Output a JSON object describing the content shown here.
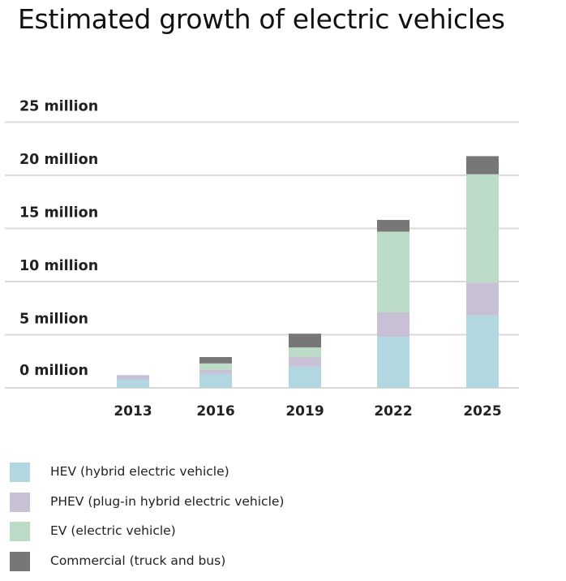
{
  "chart_data": {
    "type": "bar",
    "stacked": true,
    "title": "Estimated growth of electric vehicles",
    "xlabel": "",
    "ylabel": "",
    "ylim": [
      0,
      25
    ],
    "yticks": [
      {
        "value": 0,
        "label": "0 million"
      },
      {
        "value": 5,
        "label": "5 million"
      },
      {
        "value": 10,
        "label": "10 million"
      },
      {
        "value": 15,
        "label": "15 million"
      },
      {
        "value": 20,
        "label": "20 million"
      },
      {
        "value": 25,
        "label": "25 million"
      }
    ],
    "grid": true,
    "legend_position": "bottom-left",
    "categories": [
      "2013",
      "2016",
      "2019",
      "2022",
      "2025"
    ],
    "series": [
      {
        "key": "hev",
        "name": "HEV (hybrid electric vehicle)",
        "color": "#b1d7e0",
        "values": [
          0.8,
          1.3,
          2.0,
          4.8,
          6.8
        ]
      },
      {
        "key": "phev",
        "name": "PHEV (plug-in hybrid electric vehicle)",
        "color": "#c8c1d6",
        "values": [
          0.4,
          0.4,
          0.9,
          2.3,
          3.1
        ]
      },
      {
        "key": "ev",
        "name": "EV (electric vehicle)",
        "color": "#bcdcc8",
        "values": [
          0.0,
          0.6,
          0.9,
          7.6,
          10.2
        ]
      },
      {
        "key": "commercial",
        "name": "Commercial (truck and bus)",
        "color": "#777777",
        "values": [
          0.0,
          0.6,
          1.3,
          1.1,
          1.7
        ]
      }
    ]
  }
}
